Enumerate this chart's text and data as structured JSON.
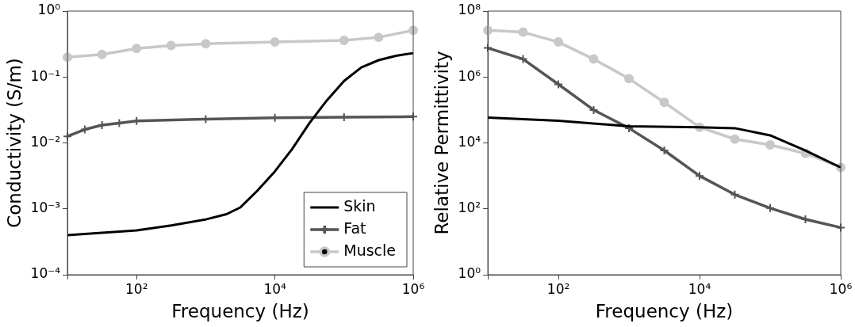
{
  "chart_data": [
    {
      "type": "line",
      "xlabel": "Frequency (Hz)",
      "ylabel": "Conductivity (S/m)",
      "log": "xy",
      "grid": false,
      "legend": "bottom right",
      "xlim": [
        10,
        1000000
      ],
      "xticks": [
        {
          "value": 10,
          "label": null
        },
        {
          "value": 100,
          "label": "10²"
        },
        {
          "value": 10000,
          "label": "10⁴"
        },
        {
          "value": 1000000,
          "label": "10⁶"
        }
      ],
      "ylim": [
        0.0001,
        1
      ],
      "yticks": [
        {
          "value": 0.0001,
          "label": "10⁻⁴"
        },
        {
          "value": 0.001,
          "label": "10⁻³"
        },
        {
          "value": 0.01,
          "label": "10⁻²"
        },
        {
          "value": 0.1,
          "label": "10⁻¹"
        },
        {
          "value": 1,
          "label": "10⁰"
        }
      ],
      "series": [
        {
          "name": "Skin",
          "color": "#000000",
          "marker": "none",
          "x": [
            10,
            100,
            316,
            1000,
            1995,
            3162,
            5623,
            10000,
            17783,
            31623,
            56234,
            100000,
            177828,
            316228,
            562341,
            1000000
          ],
          "values": [
            0.0004,
            0.00047,
            0.00056,
            0.00069,
            0.00083,
            0.00105,
            0.0019,
            0.0037,
            0.0081,
            0.02,
            0.044,
            0.087,
            0.14,
            0.18,
            0.21,
            0.23
          ]
        },
        {
          "name": "Fat",
          "color": "#555555",
          "marker": "cross",
          "x": [
            10,
            17.8,
            31.6,
            56.2,
            100,
            1000,
            10000,
            100000,
            1000000
          ],
          "values": [
            0.0126,
            0.016,
            0.0186,
            0.02,
            0.0215,
            0.023,
            0.024,
            0.0245,
            0.025
          ]
        },
        {
          "name": "Muscle",
          "color": "#c8c8c8",
          "marker": "circle",
          "x": [
            10,
            31.6,
            100,
            316,
            1000,
            10000,
            100000,
            316228,
            1000000
          ],
          "values": [
            0.2,
            0.22,
            0.27,
            0.3,
            0.32,
            0.34,
            0.36,
            0.4,
            0.51
          ]
        }
      ]
    },
    {
      "type": "line",
      "xlabel": "Frequency (Hz)",
      "ylabel": "Relative Permittivity",
      "log": "xy",
      "grid": false,
      "xlim": [
        10,
        1000000
      ],
      "xticks": [
        {
          "value": 10,
          "label": null
        },
        {
          "value": 100,
          "label": "10²"
        },
        {
          "value": 10000,
          "label": "10⁴"
        },
        {
          "value": 1000000,
          "label": "10⁶"
        }
      ],
      "ylim": [
        1,
        100000000
      ],
      "yticks": [
        {
          "value": 1,
          "label": "10⁰"
        },
        {
          "value": 100,
          "label": "10²"
        },
        {
          "value": 10000,
          "label": "10⁴"
        },
        {
          "value": 1000000,
          "label": "10⁶"
        },
        {
          "value": 100000000,
          "label": "10⁸"
        }
      ],
      "series": [
        {
          "color": "#000000",
          "marker": "none",
          "x": [
            10,
            100,
            1000,
            10000,
            31623,
            100000,
            316228,
            1000000
          ],
          "values": [
            59000,
            47000,
            32000,
            30000,
            28000,
            17000,
            5900,
            1800
          ]
        },
        {
          "color": "#555555",
          "marker": "cross",
          "x": [
            10,
            31.6,
            100,
            316,
            1000,
            3162,
            10000,
            31623,
            100000,
            316228,
            1000000
          ],
          "values": [
            7600000,
            3500000,
            600000,
            100000,
            28000,
            5900,
            1000,
            270,
            105,
            48,
            27
          ]
        },
        {
          "color": "#c8c8c8",
          "marker": "circle",
          "x": [
            10,
            31.6,
            100,
            316,
            1000,
            3162,
            10000,
            31623,
            100000,
            316228,
            1000000
          ],
          "values": [
            26000000,
            23000000,
            11500000,
            3500000,
            890000,
            170000,
            30000,
            13000,
            8700,
            4800,
            1800
          ]
        }
      ]
    }
  ]
}
